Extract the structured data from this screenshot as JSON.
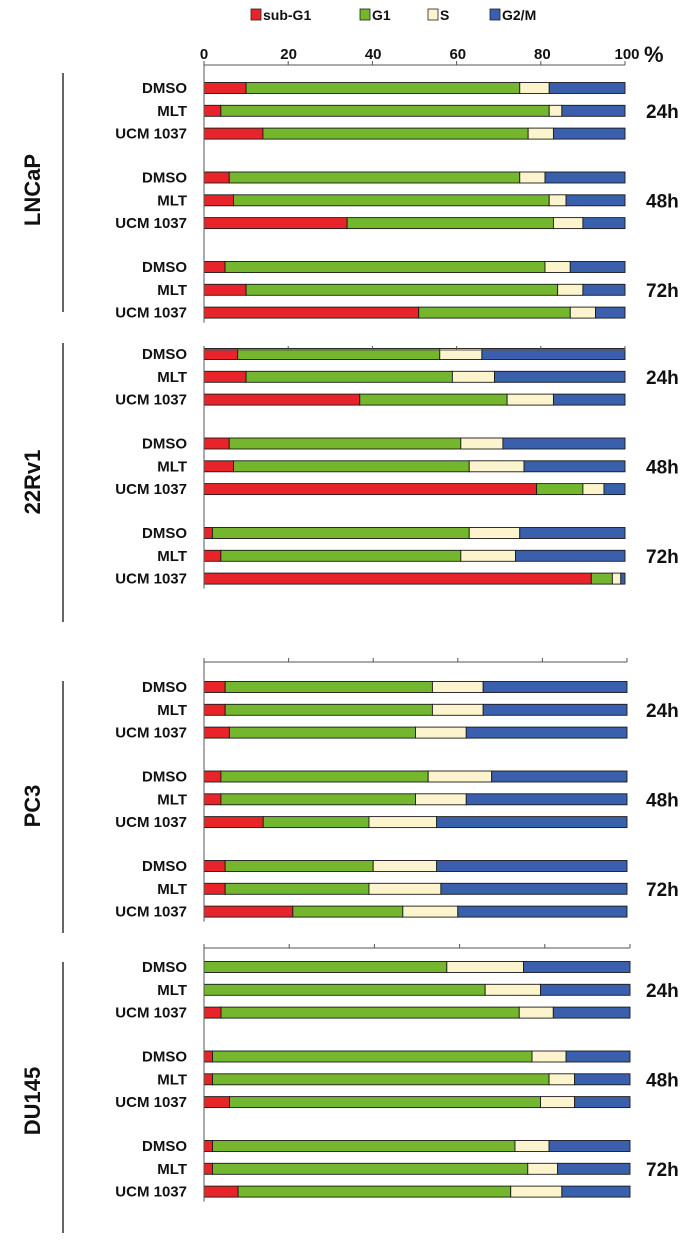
{
  "chart_data": {
    "type": "bar",
    "orientation": "horizontal",
    "stacked": true,
    "x_axis": {
      "ticks": [
        "0",
        "20",
        "40",
        "60",
        "80",
        "100"
      ],
      "unit": "%",
      "xlim": [
        0,
        100
      ]
    },
    "legend": {
      "placement": "top",
      "items": [
        {
          "name": "sub-G1",
          "color": "#e8242a"
        },
        {
          "name": "G1",
          "color": "#74b62e"
        },
        {
          "name": "S",
          "color": "#fbf4cc"
        },
        {
          "name": "G2/M",
          "color": "#3a5fad"
        }
      ]
    },
    "panels": [
      {
        "cell_line": "LNCaP",
        "groups": [
          {
            "time": "24h",
            "rows": [
              {
                "label": "DMSO",
                "values": [
                  10,
                  65,
                  7,
                  18
                ]
              },
              {
                "label": "MLT",
                "values": [
                  4,
                  78,
                  3,
                  15
                ]
              },
              {
                "label": "UCM 1037",
                "values": [
                  14,
                  63,
                  6,
                  17
                ]
              }
            ]
          },
          {
            "time": "48h",
            "rows": [
              {
                "label": "DMSO",
                "values": [
                  6,
                  69,
                  6,
                  19
                ]
              },
              {
                "label": "MLT",
                "values": [
                  7,
                  75,
                  4,
                  14
                ]
              },
              {
                "label": "UCM 1037",
                "values": [
                  34,
                  49,
                  7,
                  10
                ]
              }
            ]
          },
          {
            "time": "72h",
            "rows": [
              {
                "label": "DMSO",
                "values": [
                  5,
                  76,
                  6,
                  13
                ]
              },
              {
                "label": "MLT",
                "values": [
                  10,
                  74,
                  6,
                  10
                ]
              },
              {
                "label": "UCM 1037",
                "values": [
                  51,
                  36,
                  6,
                  7
                ]
              }
            ]
          }
        ]
      },
      {
        "cell_line": "22Rv1",
        "groups": [
          {
            "time": "24h",
            "rows": [
              {
                "label": "DMSO",
                "values": [
                  8,
                  48,
                  10,
                  34
                ]
              },
              {
                "label": "MLT",
                "values": [
                  10,
                  49,
                  10,
                  31
                ]
              },
              {
                "label": "UCM 1037",
                "values": [
                  37,
                  35,
                  11,
                  17
                ]
              }
            ]
          },
          {
            "time": "48h",
            "rows": [
              {
                "label": "DMSO",
                "values": [
                  6,
                  55,
                  10,
                  29
                ]
              },
              {
                "label": "MLT",
                "values": [
                  7,
                  56,
                  13,
                  24
                ]
              },
              {
                "label": "UCM 1037",
                "values": [
                  79,
                  11,
                  5,
                  5
                ]
              }
            ]
          },
          {
            "time": "72h",
            "rows": [
              {
                "label": "DMSO",
                "values": [
                  2,
                  61,
                  12,
                  25
                ]
              },
              {
                "label": "MLT",
                "values": [
                  4,
                  57,
                  13,
                  26
                ]
              },
              {
                "label": "UCM 1037",
                "values": [
                  92,
                  5,
                  2,
                  1
                ]
              }
            ]
          }
        ]
      },
      {
        "cell_line": "PC3",
        "groups": [
          {
            "time": "24h",
            "rows": [
              {
                "label": "DMSO",
                "values": [
                  5,
                  49,
                  12,
                  34
                ]
              },
              {
                "label": "MLT",
                "values": [
                  5,
                  49,
                  12,
                  34
                ]
              },
              {
                "label": "UCM 1037",
                "values": [
                  6,
                  44,
                  12,
                  38
                ]
              }
            ]
          },
          {
            "time": "48h",
            "rows": [
              {
                "label": "DMSO",
                "values": [
                  4,
                  49,
                  15,
                  32
                ]
              },
              {
                "label": "MLT",
                "values": [
                  4,
                  46,
                  12,
                  38
                ]
              },
              {
                "label": "UCM 1037",
                "values": [
                  14,
                  25,
                  16,
                  45
                ]
              }
            ]
          },
          {
            "time": "72h",
            "rows": [
              {
                "label": "DMSO",
                "values": [
                  5,
                  35,
                  15,
                  45
                ]
              },
              {
                "label": "MLT",
                "values": [
                  5,
                  34,
                  17,
                  44
                ]
              },
              {
                "label": "UCM 1037",
                "values": [
                  21,
                  26,
                  13,
                  40
                ]
              }
            ]
          }
        ]
      },
      {
        "cell_line": "DU145",
        "groups": [
          {
            "time": "24h",
            "rows": [
              {
                "label": "DMSO",
                "values": [
                  0,
                  57,
                  18,
                  25
                ]
              },
              {
                "label": "MLT",
                "values": [
                  0,
                  66,
                  13,
                  21
                ]
              },
              {
                "label": "UCM 1037",
                "values": [
                  4,
                  70,
                  8,
                  18
                ]
              }
            ]
          },
          {
            "time": "48h",
            "rows": [
              {
                "label": "DMSO",
                "values": [
                  2,
                  75,
                  8,
                  15
                ]
              },
              {
                "label": "MLT",
                "values": [
                  2,
                  79,
                  6,
                  13
                ]
              },
              {
                "label": "UCM 1037",
                "values": [
                  6,
                  73,
                  8,
                  13
                ]
              }
            ]
          },
          {
            "time": "72h",
            "rows": [
              {
                "label": "DMSO",
                "values": [
                  2,
                  71,
                  8,
                  19
                ]
              },
              {
                "label": "MLT",
                "values": [
                  2,
                  74,
                  7,
                  17
                ]
              },
              {
                "label": "UCM 1037",
                "values": [
                  8,
                  64,
                  12,
                  16
                ]
              }
            ]
          }
        ]
      }
    ]
  }
}
